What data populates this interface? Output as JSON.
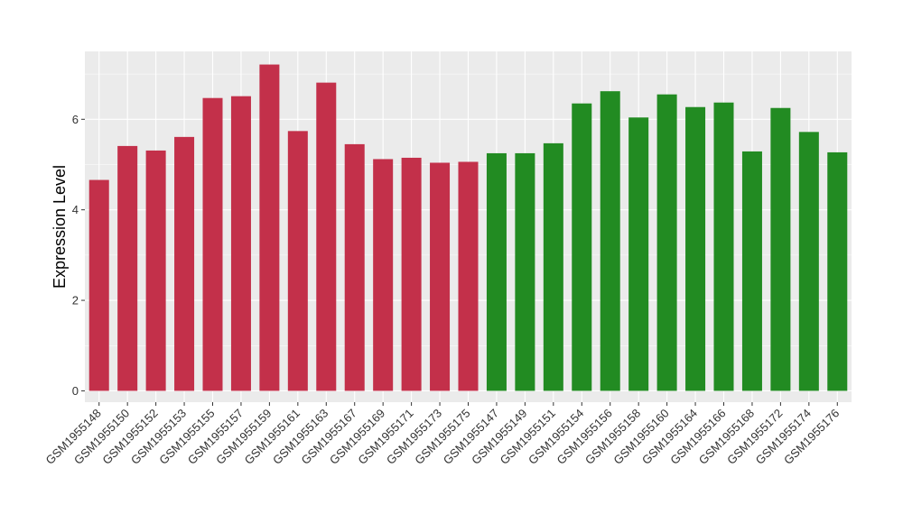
{
  "chart_data": {
    "type": "bar",
    "title": "",
    "xlabel": "",
    "ylabel": "Expression Level",
    "ylim": [
      -0.25,
      7.5
    ],
    "yticks": [
      0,
      2,
      4,
      6
    ],
    "grid": true,
    "legend": "none",
    "colors": {
      "group1": "#c3304a",
      "group2": "#228b22",
      "panel_bg": "#ebebeb",
      "grid": "#ffffff"
    },
    "categories": [
      "GSM1955148",
      "GSM1955150",
      "GSM1955152",
      "GSM1955153",
      "GSM1955155",
      "GSM1955157",
      "GSM1955159",
      "GSM1955161",
      "GSM1955163",
      "GSM1955167",
      "GSM1955169",
      "GSM1955171",
      "GSM1955173",
      "GSM1955175",
      "GSM1955147",
      "GSM1955149",
      "GSM1955151",
      "GSM1955154",
      "GSM1955156",
      "GSM1955158",
      "GSM1955160",
      "GSM1955164",
      "GSM1955166",
      "GSM1955168",
      "GSM1955172",
      "GSM1955174",
      "GSM1955176"
    ],
    "values": [
      4.66,
      5.41,
      5.31,
      5.61,
      6.47,
      6.51,
      7.21,
      5.74,
      6.81,
      5.45,
      5.12,
      5.15,
      5.04,
      5.06,
      5.25,
      5.25,
      5.47,
      6.35,
      6.62,
      6.04,
      6.55,
      6.27,
      6.37,
      5.29,
      6.25,
      5.72,
      5.27
    ],
    "groups": [
      "group1",
      "group1",
      "group1",
      "group1",
      "group1",
      "group1",
      "group1",
      "group1",
      "group1",
      "group1",
      "group1",
      "group1",
      "group1",
      "group1",
      "group2",
      "group2",
      "group2",
      "group2",
      "group2",
      "group2",
      "group2",
      "group2",
      "group2",
      "group2",
      "group2",
      "group2",
      "group2"
    ]
  }
}
